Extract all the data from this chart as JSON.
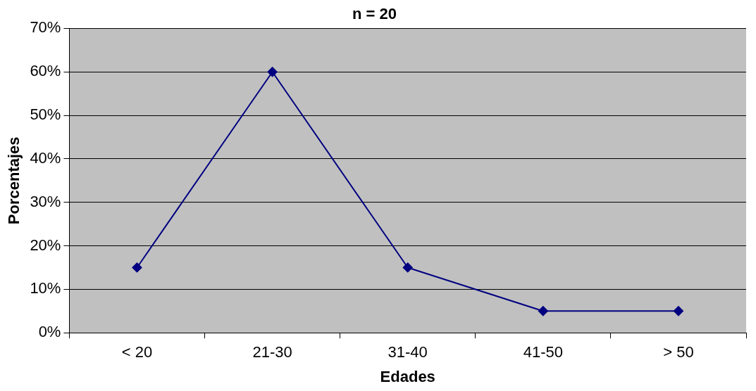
{
  "chart_data": {
    "type": "line",
    "title": "n = 20",
    "xlabel": "Edades",
    "ylabel": "Porcentajes",
    "categories": [
      "< 20",
      "21-30",
      "31-40",
      "41-50",
      "> 50"
    ],
    "series": [
      {
        "color": "#000080",
        "values": [
          15,
          60,
          15,
          5,
          5
        ]
      }
    ],
    "ylim": [
      0,
      70
    ],
    "yticks": [
      {
        "value": 0,
        "label": "0%"
      },
      {
        "value": 10,
        "label": "10%"
      },
      {
        "value": 20,
        "label": "20%"
      },
      {
        "value": 30,
        "label": "30%"
      },
      {
        "value": 40,
        "label": "40%"
      },
      {
        "value": 50,
        "label": "50%"
      },
      {
        "value": 60,
        "label": "60%"
      },
      {
        "value": 70,
        "label": "70%"
      }
    ],
    "grid": "y",
    "legend": false,
    "marker": "diamond",
    "line_style": "solid"
  }
}
